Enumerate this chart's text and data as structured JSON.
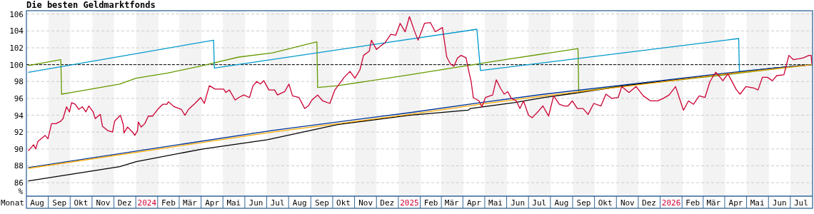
{
  "chart_data": {
    "type": "line",
    "title": "Die besten Geldmarktfonds",
    "xlabel": "Monat",
    "ylabel": "%",
    "xlim": [
      "2023-08-01",
      "2026-08-01"
    ],
    "ylim": [
      84.4,
      106.4
    ],
    "yticks": [
      86,
      88,
      90,
      92,
      94,
      96,
      98,
      100,
      102,
      104,
      106
    ],
    "xticks": [
      {
        "value": "2023-08-16",
        "label": "Aug"
      },
      {
        "value": "2023-09-16",
        "label": "Sep"
      },
      {
        "value": "2023-10-16",
        "label": "Okt"
      },
      {
        "value": "2023-11-16",
        "label": "Nov"
      },
      {
        "value": "2023-12-16",
        "label": "Dez"
      },
      {
        "value": "2024-01-16",
        "label": "2024"
      },
      {
        "value": "2024-02-15",
        "label": "Feb"
      },
      {
        "value": "2024-03-16",
        "label": "Mär"
      },
      {
        "value": "2024-04-16",
        "label": "Apr"
      },
      {
        "value": "2024-05-16",
        "label": "Mai"
      },
      {
        "value": "2024-06-16",
        "label": "Jun"
      },
      {
        "value": "2024-07-16",
        "label": "Jul"
      },
      {
        "value": "2024-08-16",
        "label": "Aug"
      },
      {
        "value": "2024-09-16",
        "label": "Sep"
      },
      {
        "value": "2024-10-16",
        "label": "Okt"
      },
      {
        "value": "2024-11-16",
        "label": "Nov"
      },
      {
        "value": "2024-12-16",
        "label": "Dez"
      },
      {
        "value": "2025-01-16",
        "label": "2025"
      },
      {
        "value": "2025-02-15",
        "label": "Feb"
      },
      {
        "value": "2025-03-16",
        "label": "Mär"
      },
      {
        "value": "2025-04-16",
        "label": "Apr"
      },
      {
        "value": "2025-05-16",
        "label": "Mai"
      },
      {
        "value": "2025-06-16",
        "label": "Jun"
      },
      {
        "value": "2025-07-16",
        "label": "Jul"
      },
      {
        "value": "2025-08-16",
        "label": "Aug"
      },
      {
        "value": "2025-09-16",
        "label": "Sep"
      },
      {
        "value": "2025-10-16",
        "label": "Okt"
      },
      {
        "value": "2025-11-16",
        "label": "Nov"
      },
      {
        "value": "2025-12-16",
        "label": "Dez"
      },
      {
        "value": "2026-01-16",
        "label": "2026"
      },
      {
        "value": "2026-02-15",
        "label": "Feb"
      },
      {
        "value": "2026-03-16",
        "label": "Mär"
      },
      {
        "value": "2026-04-16",
        "label": "Apr"
      },
      {
        "value": "2026-05-16",
        "label": "Mai"
      },
      {
        "value": "2026-06-16",
        "label": "Jun"
      },
      {
        "value": "2026-07-16",
        "label": "Jul"
      }
    ],
    "grid": true,
    "line_style": "solid",
    "marker": "none",
    "bands": [
      {
        "axis": "x",
        "from": "2023-09-01",
        "to": "2023-10-01",
        "color": "#f3f3f3"
      },
      {
        "axis": "x",
        "from": "2023-11-01",
        "to": "2023-12-01",
        "color": "#f3f3f3"
      },
      {
        "axis": "x",
        "from": "2024-01-01",
        "to": "2024-02-01",
        "color": "#f3f3f3"
      },
      {
        "axis": "x",
        "from": "2024-03-01",
        "to": "2024-04-01",
        "color": "#f3f3f3"
      },
      {
        "axis": "x",
        "from": "2024-05-01",
        "to": "2024-06-01",
        "color": "#f3f3f3"
      },
      {
        "axis": "x",
        "from": "2024-07-01",
        "to": "2024-08-01",
        "color": "#f3f3f3"
      },
      {
        "axis": "x",
        "from": "2024-09-01",
        "to": "2024-10-01",
        "color": "#f3f3f3"
      },
      {
        "axis": "x",
        "from": "2024-11-01",
        "to": "2024-12-01",
        "color": "#f3f3f3"
      },
      {
        "axis": "x",
        "from": "2025-01-01",
        "to": "2025-02-01",
        "color": "#f3f3f3"
      },
      {
        "axis": "x",
        "from": "2025-03-01",
        "to": "2025-04-01",
        "color": "#f3f3f3"
      },
      {
        "axis": "x",
        "from": "2025-05-01",
        "to": "2025-06-01",
        "color": "#f3f3f3"
      },
      {
        "axis": "x",
        "from": "2025-07-01",
        "to": "2025-08-01",
        "color": "#f3f3f3"
      },
      {
        "axis": "x",
        "from": "2025-09-01",
        "to": "2025-10-01",
        "color": "#f3f3f3"
      },
      {
        "axis": "x",
        "from": "2025-11-01",
        "to": "2025-12-01",
        "color": "#f3f3f3"
      },
      {
        "axis": "x",
        "from": "2026-01-01",
        "to": "2026-02-01",
        "color": "#f3f3f3"
      },
      {
        "axis": "x",
        "from": "2026-03-01",
        "to": "2026-04-01",
        "color": "#f3f3f3"
      },
      {
        "axis": "x",
        "from": "2026-05-01",
        "to": "2026-06-01",
        "color": "#f3f3f3"
      },
      {
        "axis": "x",
        "from": "2026-07-01",
        "to": "2026-08-01",
        "color": "#f3f3f3"
      }
    ],
    "ref_lines": [
      {
        "axis": "y",
        "value": 100,
        "color": "#000000",
        "line_style": "dashed"
      }
    ],
    "series": [
      {
        "color": "#669900",
        "x": [
          "2023-08-04",
          "2023-09-18",
          "2023-09-19",
          "2023-10-03",
          "2023-12-09",
          "2024-01-01",
          "2024-02-14",
          "2024-04-03",
          "2024-05-23",
          "2024-07-09",
          "2024-09-09",
          "2024-09-10",
          "2024-10-08",
          "2025-01-16",
          "2025-03-24",
          "2025-05-29",
          "2025-09-08",
          "2025-09-09",
          "2025-11-21",
          "2026-01-29",
          "2026-04-01",
          "2026-06-10",
          "2026-07-31"
        ],
        "values": [
          99.9,
          100.6,
          96.5,
          96.7,
          97.7,
          98.4,
          99.0,
          99.9,
          100.9,
          101.4,
          102.7,
          97.3,
          97.5,
          98.8,
          99.7,
          100.6,
          101.9,
          96.8,
          97.6,
          98.2,
          98.8,
          99.5,
          100.0
        ]
      },
      {
        "color": "#0099cc",
        "x": [
          "2023-08-04",
          "2024-04-18",
          "2024-04-19",
          "2025-04-20",
          "2025-04-25",
          "2026-04-20",
          "2026-04-21",
          "2026-07-31"
        ],
        "values": [
          99.1,
          102.9,
          99.6,
          104.2,
          99.3,
          103.1,
          99.2,
          100.0
        ]
      },
      {
        "color": "#000000",
        "x": [
          "2023-08-04",
          "2023-12-09",
          "2024-01-01",
          "2024-04-03",
          "2024-07-02",
          "2024-10-08",
          "2025-01-16",
          "2025-04-08",
          "2025-04-11",
          "2025-06-11",
          "2025-07-23",
          "2025-08-25",
          "2025-11-21",
          "2026-04-03",
          "2026-06-08",
          "2026-07-31"
        ],
        "values": [
          86.2,
          87.9,
          88.5,
          90.0,
          91.1,
          92.9,
          94.0,
          94.6,
          94.8,
          95.5,
          96.1,
          96.5,
          97.6,
          98.9,
          99.6,
          100.0
        ]
      },
      {
        "color": "#003399",
        "x": [
          "2023-08-04",
          "2024-07-09",
          "2025-01-16",
          "2025-04-25",
          "2025-07-23",
          "2025-11-21",
          "2026-04-03",
          "2026-06-08",
          "2026-07-31"
        ],
        "values": [
          87.8,
          92.2,
          94.3,
          95.5,
          96.5,
          97.7,
          99.0,
          99.6,
          100.0
        ]
      },
      {
        "color": "#ffaa00",
        "x": [
          "2023-08-04",
          "2024-07-09",
          "2025-01-16",
          "2025-04-25",
          "2025-07-23",
          "2025-11-21",
          "2026-04-03",
          "2026-06-08",
          "2026-07-31"
        ],
        "values": [
          87.7,
          92.0,
          94.1,
          95.3,
          96.3,
          97.5,
          98.9,
          99.5,
          100.0
        ]
      },
      {
        "color": "#cc0033",
        "x": [
          "2023-08-04",
          "2023-08-11",
          "2023-08-14",
          "2023-08-17",
          "2023-08-27",
          "2023-08-31",
          "2023-09-05",
          "2023-09-11",
          "2023-09-18",
          "2023-09-21",
          "2023-09-26",
          "2023-09-30",
          "2023-10-03",
          "2023-10-08",
          "2023-10-13",
          "2023-10-18",
          "2023-10-23",
          "2023-10-27",
          "2023-11-02",
          "2023-11-05",
          "2023-11-12",
          "2023-11-15",
          "2023-11-22",
          "2023-11-29",
          "2023-12-02",
          "2023-12-10",
          "2023-12-14",
          "2023-12-15",
          "2023-12-20",
          "2023-12-27",
          "2023-12-30",
          "2024-01-03",
          "2024-01-04",
          "2024-01-08",
          "2024-01-13",
          "2024-01-18",
          "2024-01-24",
          "2024-01-31",
          "2024-02-07",
          "2024-02-13",
          "2024-02-15",
          "2024-02-23",
          "2024-03-04",
          "2024-03-09",
          "2024-03-14",
          "2024-03-23",
          "2024-03-31",
          "2024-04-05",
          "2024-04-12",
          "2024-04-20",
          "2024-05-02",
          "2024-05-05",
          "2024-05-10",
          "2024-05-18",
          "2024-05-23",
          "2024-05-30",
          "2024-06-07",
          "2024-06-12",
          "2024-06-17",
          "2024-06-22",
          "2024-06-27",
          "2024-07-04",
          "2024-07-09",
          "2024-07-12",
          "2024-07-16",
          "2024-07-26",
          "2024-08-01",
          "2024-08-06",
          "2024-08-15",
          "2024-08-23",
          "2024-08-28",
          "2024-09-02",
          "2024-09-10",
          "2024-09-17",
          "2024-09-27",
          "2024-10-04",
          "2024-10-17",
          "2024-10-25",
          "2024-11-01",
          "2024-11-08",
          "2024-11-13",
          "2024-11-21",
          "2024-11-24",
          "2024-12-01",
          "2024-12-08",
          "2024-12-13",
          "2024-12-21",
          "2024-12-28",
          "2025-01-03",
          "2025-01-10",
          "2025-01-16",
          "2025-01-23",
          "2025-01-28",
          "2025-02-06",
          "2025-02-14",
          "2025-02-21",
          "2025-03-03",
          "2025-03-09",
          "2025-03-14",
          "2025-03-19",
          "2025-03-24",
          "2025-03-29",
          "2025-04-05",
          "2025-04-08",
          "2025-04-12",
          "2025-04-15",
          "2025-04-23",
          "2025-04-27",
          "2025-05-02",
          "2025-05-12",
          "2025-05-17",
          "2025-05-23",
          "2025-05-28",
          "2025-06-02",
          "2025-06-07",
          "2025-06-14",
          "2025-06-19",
          "2025-06-24",
          "2025-07-01",
          "2025-07-06",
          "2025-07-14",
          "2025-07-21",
          "2025-07-29",
          "2025-08-05",
          "2025-08-13",
          "2025-08-20",
          "2025-08-25",
          "2025-08-31",
          "2025-09-07",
          "2025-09-15",
          "2025-09-22",
          "2025-09-30",
          "2025-10-10",
          "2025-10-17",
          "2025-10-25",
          "2025-11-03",
          "2025-11-08",
          "2025-11-18",
          "2025-11-28",
          "2025-12-08",
          "2025-12-18",
          "2025-12-28",
          "2026-01-05",
          "2026-01-13",
          "2026-01-22",
          "2026-02-02",
          "2026-02-09",
          "2026-02-16",
          "2026-02-24",
          "2026-03-04",
          "2026-03-11",
          "2026-03-19",
          "2026-03-29",
          "2026-04-05",
          "2026-04-17",
          "2026-04-22",
          "2026-04-30",
          "2026-05-12",
          "2026-05-17",
          "2026-05-23",
          "2026-05-30",
          "2026-06-06",
          "2026-06-12",
          "2026-06-22",
          "2026-06-29",
          "2026-07-05",
          "2026-07-13",
          "2026-07-19",
          "2026-07-27",
          "2026-07-30",
          "2026-07-31"
        ],
        "values": [
          89.8,
          90.5,
          90.0,
          90.9,
          91.6,
          91.2,
          93.0,
          93.0,
          93.3,
          93.6,
          95.0,
          94.4,
          95.5,
          95.3,
          94.7,
          95.0,
          94.4,
          95.1,
          94.4,
          93.6,
          94.1,
          92.7,
          92.2,
          92.0,
          93.3,
          94.0,
          92.9,
          91.9,
          92.6,
          92.0,
          91.6,
          92.2,
          93.2,
          92.6,
          93.0,
          93.9,
          93.9,
          94.7,
          95.3,
          95.3,
          95.6,
          95.0,
          94.7,
          94.0,
          94.7,
          95.4,
          96.1,
          95.4,
          97.5,
          97.1,
          97.1,
          96.7,
          97.0,
          95.8,
          96.1,
          96.4,
          96.1,
          97.5,
          98.0,
          97.7,
          98.1,
          97.0,
          97.0,
          97.0,
          96.4,
          96.8,
          97.7,
          96.3,
          96.1,
          94.8,
          95.1,
          95.8,
          96.4,
          95.7,
          95.4,
          97.0,
          98.5,
          99.2,
          98.4,
          99.4,
          101.1,
          101.6,
          102.9,
          101.8,
          102.3,
          102.6,
          103.6,
          103.5,
          104.9,
          103.9,
          105.7,
          104.0,
          102.9,
          104.9,
          105.0,
          103.9,
          104.4,
          100.9,
          100.1,
          99.8,
          100.8,
          101.1,
          100.8,
          99.5,
          98.0,
          96.1,
          95.7,
          95.0,
          96.1,
          96.4,
          98.2,
          97.2,
          96.5,
          96.8,
          96.0,
          95.7,
          94.8,
          95.7,
          94.0,
          93.7,
          94.4,
          95.1,
          93.9,
          96.3,
          95.3,
          95.1,
          95.1,
          95.7,
          94.8,
          94.8,
          94.1,
          95.4,
          95.1,
          96.5,
          96.0,
          96.1,
          97.4,
          96.7,
          97.4,
          96.3,
          95.7,
          95.7,
          96.0,
          96.4,
          97.4,
          94.6,
          95.7,
          95.3,
          96.3,
          96.1,
          98.0,
          99.1,
          98.1,
          98.9,
          97.0,
          96.5,
          97.4,
          97.2,
          97.0,
          98.5,
          98.5,
          98.1,
          98.7,
          98.8,
          101.1,
          100.6,
          100.7,
          100.8,
          101.1,
          101.1,
          100.1
        ]
      }
    ]
  }
}
